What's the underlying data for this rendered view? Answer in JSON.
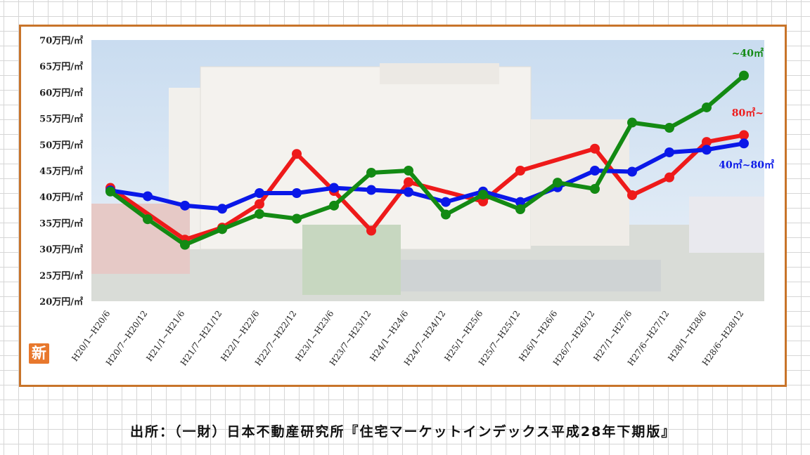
{
  "chart_data": {
    "type": "line",
    "title": "",
    "xlabel": "",
    "ylabel": "",
    "ylim": [
      20,
      70
    ],
    "y_ticks": [
      "20万円/㎡",
      "25万円/㎡",
      "30万円/㎡",
      "35万円/㎡",
      "40万円/㎡",
      "45万円/㎡",
      "50万円/㎡",
      "55万円/㎡",
      "60万円/㎡",
      "65万円/㎡",
      "70万円/㎡"
    ],
    "categories": [
      "H20/1~H20/6",
      "H20/7~H20/12",
      "H21/1~H21/6",
      "H21/7~H21/12",
      "H22/1~H22/6",
      "H22/7~H22/12",
      "H23/1~H23/6",
      "H23/7~H23/12",
      "H24/1~H24/6",
      "H24/7~H24/12",
      "H25/1~H25/6",
      "H25/7~H25/12",
      "H26/1~H26/6",
      "H26/7~H26/12",
      "H27/1~H27/6",
      "H27/6~H27/12",
      "H28/1~H28/6",
      "H28/6~H28/12"
    ],
    "series": [
      {
        "name": "40㎡~80㎡",
        "color": "#0a18e8",
        "values": [
          41.2,
          40.1,
          38.3,
          37.7,
          40.7,
          40.7,
          41.7,
          41.3,
          40.9,
          39.0,
          41.0,
          39.0,
          41.8,
          45.0,
          44.8,
          48.5,
          49.0,
          50.2
        ]
      },
      {
        "name": "80㎡~",
        "color": "#ee1a1a",
        "values": [
          41.7,
          null,
          31.8,
          34.1,
          38.6,
          48.2,
          41.1,
          33.5,
          42.8,
          null,
          39.1,
          45.0,
          null,
          49.2,
          40.3,
          43.7,
          50.5,
          51.8
        ]
      },
      {
        "name": "~40㎡",
        "color": "#138a13",
        "values": [
          41.0,
          35.7,
          30.8,
          33.8,
          36.7,
          35.8,
          38.3,
          44.6,
          45.0,
          36.6,
          40.4,
          37.6,
          42.7,
          41.5,
          54.2,
          53.2,
          57.1,
          63.2
        ]
      }
    ],
    "grid": false,
    "legend": "inline labels at right end"
  },
  "badge": "新",
  "source_text": "出所：（一財）日本不動産研究所『住宅マーケットインデックス平成28年下期版』"
}
